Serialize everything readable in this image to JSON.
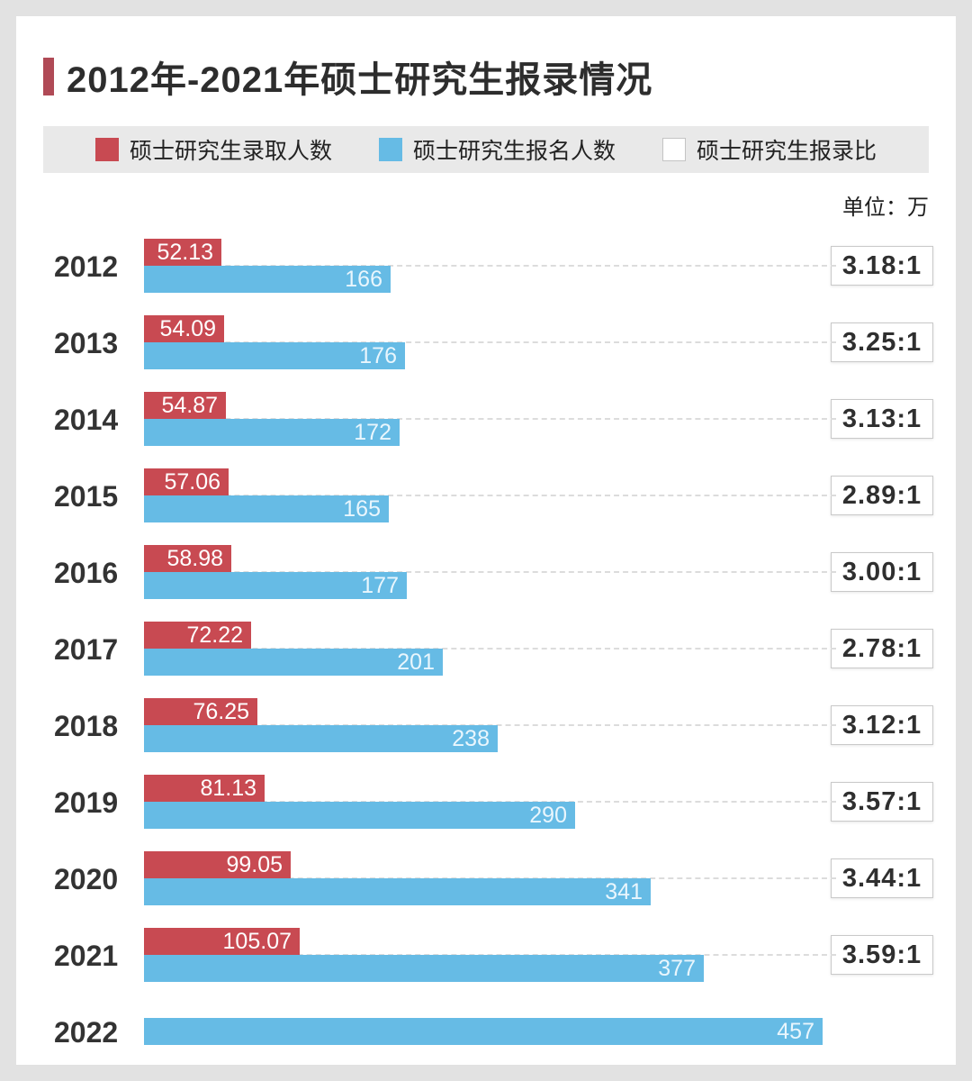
{
  "title": "2012年-2021年硕士研究生报录情况",
  "unit_label": "单位：万",
  "colors": {
    "admitted_red": "#c84a52",
    "applicants_blue": "#66bbe5",
    "title_accent": "#b04a56",
    "legend_background": "#e9e9e9",
    "ratio_swatch_border": "#c4c4c4"
  },
  "legend": {
    "items": [
      {
        "label": "硕士研究生录取人数",
        "swatch": "red-filled"
      },
      {
        "label": "硕士研究生报名人数",
        "swatch": "blue-filled"
      },
      {
        "label": "硕士研究生报录比",
        "swatch": "white-outlined"
      }
    ]
  },
  "chart_data": {
    "type": "bar",
    "orientation": "horizontal",
    "title": "2012年-2021年硕士研究生报录情况",
    "unit": "万",
    "legend_position": "top",
    "grid": "dashed-row-lines",
    "xlim": [
      0,
      460
    ],
    "categories": [
      "2012",
      "2013",
      "2014",
      "2015",
      "2016",
      "2017",
      "2018",
      "2019",
      "2020",
      "2021",
      "2022"
    ],
    "series": [
      {
        "name": "硕士研究生录取人数",
        "color": "#c84a52",
        "values": [
          52.13,
          54.09,
          54.87,
          57.06,
          58.98,
          72.22,
          76.25,
          81.13,
          99.05,
          105.07,
          null
        ]
      },
      {
        "name": "硕士研究生报名人数",
        "color": "#66bbe5",
        "values": [
          166,
          176,
          172,
          165,
          177,
          201,
          238,
          290,
          341,
          377,
          457
        ]
      },
      {
        "name": "硕士研究生报录比",
        "values": [
          "3.18:1",
          "3.25:1",
          "3.13:1",
          "2.89:1",
          "3.00:1",
          "2.78:1",
          "3.12:1",
          "3.57:1",
          "3.44:1",
          "3.59:1",
          null
        ]
      }
    ],
    "rows": [
      {
        "year": "2012",
        "admitted": "52.13",
        "applicants": "166",
        "ratio": "3.18:1"
      },
      {
        "year": "2013",
        "admitted": "54.09",
        "applicants": "176",
        "ratio": "3.25:1"
      },
      {
        "year": "2014",
        "admitted": "54.87",
        "applicants": "172",
        "ratio": "3.13:1"
      },
      {
        "year": "2015",
        "admitted": "57.06",
        "applicants": "165",
        "ratio": "2.89:1"
      },
      {
        "year": "2016",
        "admitted": "58.98",
        "applicants": "177",
        "ratio": "3.00:1"
      },
      {
        "year": "2017",
        "admitted": "72.22",
        "applicants": "201",
        "ratio": "2.78:1"
      },
      {
        "year": "2018",
        "admitted": "76.25",
        "applicants": "238",
        "ratio": "3.12:1"
      },
      {
        "year": "2019",
        "admitted": "81.13",
        "applicants": "290",
        "ratio": "3.57:1"
      },
      {
        "year": "2020",
        "admitted": "99.05",
        "applicants": "341",
        "ratio": "3.44:1"
      },
      {
        "year": "2021",
        "admitted": "105.07",
        "applicants": "377",
        "ratio": "3.59:1"
      },
      {
        "year": "2022",
        "admitted": null,
        "applicants": "457",
        "ratio": null
      }
    ]
  }
}
